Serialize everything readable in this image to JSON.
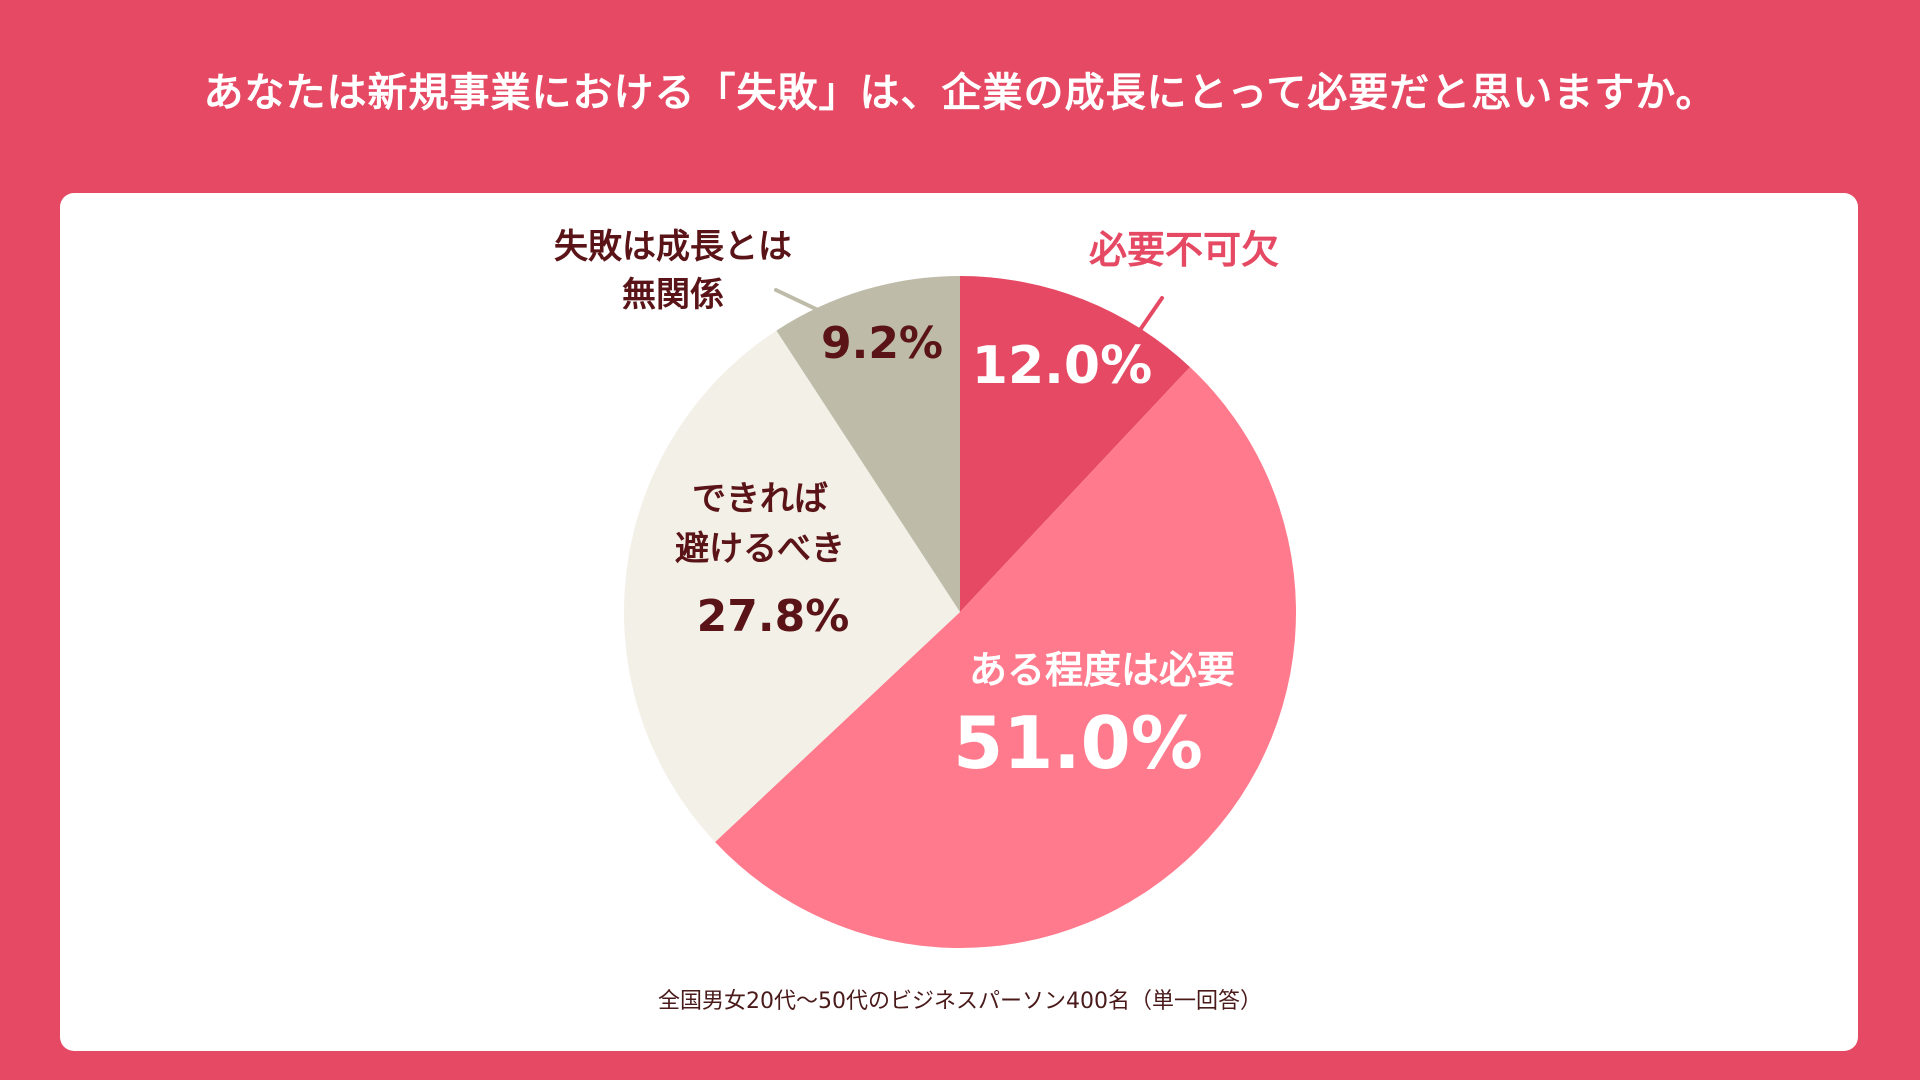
{
  "title": "あなたは新規事業における「失敗」は、企業の成長にとって必要だと思いますか。",
  "footnote": "全国男女20代〜50代のビジネスパーソン400名（単一回答）",
  "chart_data": {
    "type": "pie",
    "title": "あなたは新規事業における「失敗」は、企業の成長にとって必要だと思いますか。",
    "start_angle": "12 o'clock, clockwise",
    "slices": [
      {
        "label_lines": [
          "必要不可欠"
        ],
        "value": 12.0,
        "value_label": "12.0%",
        "color": "#E64963",
        "label_color": "#E64963",
        "value_color": "#FFFFFF"
      },
      {
        "label_lines": [
          "ある程度は必要"
        ],
        "value": 51.0,
        "value_label": "51.0%",
        "color": "#FF7A8C",
        "label_color": "#FFFFFF",
        "value_color": "#FFFFFF"
      },
      {
        "label_lines": [
          "できれば",
          "避けるべき"
        ],
        "value": 27.8,
        "value_label": "27.8%",
        "color": "#F3F0E7",
        "label_color": "#5A1418",
        "value_color": "#5A1418"
      },
      {
        "label_lines": [
          "失敗は成長とは",
          "無関係"
        ],
        "value": 9.2,
        "value_label": "9.2%",
        "color": "#BEBBA9",
        "label_color": "#5A1418",
        "value_color": "#5A1418"
      }
    ],
    "leader_colors": [
      "#E64963",
      "#BEBBA9"
    ]
  }
}
